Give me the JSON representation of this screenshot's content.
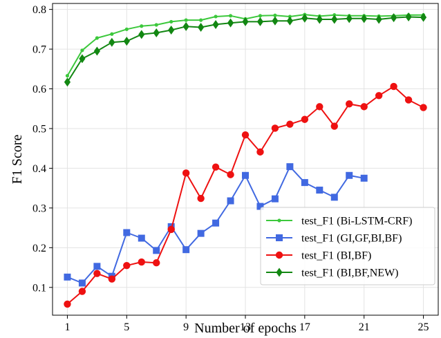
{
  "chart_data": {
    "type": "line",
    "title": "",
    "xlabel": "Number of epochs",
    "ylabel": "F1 Score",
    "xlim": [
      0,
      26
    ],
    "ylim": [
      0.03,
      0.815
    ],
    "xticks": [
      1,
      5,
      9,
      13,
      17,
      21,
      25
    ],
    "yticks": [
      0.1,
      0.2,
      0.3,
      0.4,
      0.5,
      0.6,
      0.7,
      0.8
    ],
    "grid": true,
    "legend_position": "lower-right",
    "series": [
      {
        "name": "test_F1 (Bi-LSTM-CRF)",
        "color": "#3cc83c",
        "marker": "small-circle",
        "x": [
          1,
          2,
          3,
          4,
          5,
          6,
          7,
          8,
          9,
          10,
          11,
          12,
          13,
          14,
          15,
          16,
          17,
          18,
          19,
          20,
          21,
          22,
          23,
          24,
          25
        ],
        "values": [
          0.633,
          0.697,
          0.728,
          0.738,
          0.75,
          0.758,
          0.761,
          0.769,
          0.773,
          0.773,
          0.782,
          0.784,
          0.776,
          0.784,
          0.785,
          0.782,
          0.787,
          0.783,
          0.786,
          0.784,
          0.784,
          0.783,
          0.784,
          0.786,
          0.786
        ]
      },
      {
        "name": "test_F1 (GI,GF,BI,BF)",
        "color": "#4169e1",
        "marker": "square",
        "x": [
          1,
          2,
          3,
          4,
          5,
          6,
          7,
          8,
          9,
          10,
          11,
          12,
          13,
          14,
          15,
          16,
          17,
          18,
          19,
          20,
          21
        ],
        "values": [
          0.126,
          0.111,
          0.153,
          0.128,
          0.238,
          0.224,
          0.193,
          0.253,
          0.195,
          0.236,
          0.262,
          0.318,
          0.382,
          0.304,
          0.323,
          0.404,
          0.364,
          0.345,
          0.327,
          0.382,
          0.375
        ]
      },
      {
        "name": "test_F1 (BI,BF)",
        "color": "#ee1111",
        "marker": "circle",
        "x": [
          1,
          2,
          3,
          4,
          5,
          6,
          7,
          8,
          9,
          10,
          11,
          12,
          13,
          14,
          15,
          16,
          17,
          18,
          19,
          20,
          21,
          22,
          23,
          24,
          25
        ],
        "values": [
          0.058,
          0.09,
          0.135,
          0.121,
          0.155,
          0.164,
          0.162,
          0.246,
          0.388,
          0.324,
          0.403,
          0.384,
          0.484,
          0.441,
          0.501,
          0.511,
          0.523,
          0.555,
          0.506,
          0.562,
          0.555,
          0.583,
          0.606,
          0.572,
          0.553
        ]
      },
      {
        "name": "test_F1 (BI,BF,NEW)",
        "color": "#128712",
        "marker": "diamond",
        "x": [
          1,
          2,
          3,
          4,
          5,
          6,
          7,
          8,
          9,
          10,
          11,
          12,
          13,
          14,
          15,
          16,
          17,
          18,
          19,
          20,
          21,
          22,
          23,
          24,
          25
        ],
        "values": [
          0.617,
          0.676,
          0.695,
          0.717,
          0.72,
          0.737,
          0.741,
          0.748,
          0.757,
          0.755,
          0.762,
          0.766,
          0.769,
          0.769,
          0.771,
          0.771,
          0.778,
          0.775,
          0.775,
          0.777,
          0.777,
          0.775,
          0.779,
          0.781,
          0.78
        ]
      }
    ]
  }
}
